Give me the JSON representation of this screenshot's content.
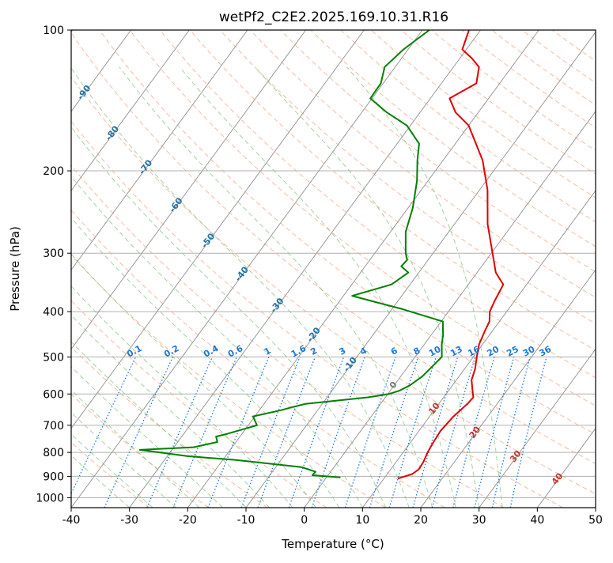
{
  "chart_data": {
    "type": "line",
    "title": "wetPf2_C2E2.2025.169.10.31.R16",
    "xlabel": "Temperature (°C)",
    "ylabel": "Pressure (hPa)",
    "xlim": [
      -40,
      50
    ],
    "ylim": [
      1050,
      100
    ],
    "y_scale": "log",
    "grid": true,
    "x_ticks": [
      -40,
      -30,
      -20,
      -10,
      0,
      10,
      20,
      30,
      40,
      50
    ],
    "y_ticks": [
      100,
      200,
      300,
      400,
      500,
      600,
      700,
      800,
      900,
      1000
    ],
    "colors": {
      "temperature": "#e00000",
      "dewpoint": "#008000",
      "dry_adiabat": "#f4a582",
      "moist_adiabat": "#7fbf7b",
      "mixing_ratio": "#1f78d1",
      "isotherm": "#999999"
    },
    "series": [
      {
        "role": "temperature",
        "points": [
          [
            12.4,
            910
          ],
          [
            14.3,
            890
          ],
          [
            14.8,
            870
          ],
          [
            14.7,
            840
          ],
          [
            14.2,
            800
          ],
          [
            13.9,
            760
          ],
          [
            13.7,
            720
          ],
          [
            14.1,
            670
          ],
          [
            14.9,
            630
          ],
          [
            15.1,
            610
          ],
          [
            14.1,
            590
          ],
          [
            12.6,
            560
          ],
          [
            11.8,
            530
          ],
          [
            10.6,
            500
          ],
          [
            9.4,
            470
          ],
          [
            8.7,
            440
          ],
          [
            8.3,
            420
          ],
          [
            7.1,
            400
          ],
          [
            6.6,
            380
          ],
          [
            6.0,
            350
          ],
          [
            3.2,
            330
          ],
          [
            0.2,
            300
          ],
          [
            -4.3,
            260
          ],
          [
            -8.6,
            220
          ],
          [
            -13.2,
            190
          ],
          [
            -20.0,
            160
          ],
          [
            -23.9,
            150
          ],
          [
            -26.7,
            140
          ],
          [
            -24.0,
            130
          ],
          [
            -25.6,
            120
          ],
          [
            -27.9,
            115
          ],
          [
            -30.7,
            110
          ],
          [
            -32.0,
            100
          ]
        ]
      },
      {
        "role": "dewpoint",
        "points": [
          [
            2.4,
            905
          ],
          [
            -2.7,
            895
          ],
          [
            -2.6,
            880
          ],
          [
            -5.6,
            860
          ],
          [
            -17.9,
            830
          ],
          [
            -26.5,
            815
          ],
          [
            -35.5,
            790
          ],
          [
            -26.6,
            780
          ],
          [
            -23.2,
            760
          ],
          [
            -24.1,
            740
          ],
          [
            -22.5,
            730
          ],
          [
            -18.5,
            700
          ],
          [
            -20.3,
            670
          ],
          [
            -16.3,
            650
          ],
          [
            -14.7,
            640
          ],
          [
            -12.9,
            630
          ],
          [
            -3.0,
            610
          ],
          [
            0.2,
            600
          ],
          [
            1.6,
            590
          ],
          [
            2.7,
            575
          ],
          [
            3.7,
            550
          ],
          [
            4.6,
            500
          ],
          [
            3.0,
            470
          ],
          [
            2.1,
            450
          ],
          [
            0.3,
            420
          ],
          [
            -8.2,
            395
          ],
          [
            -14.4,
            380
          ],
          [
            -18.5,
            370
          ],
          [
            -13.2,
            350
          ],
          [
            -11.8,
            330
          ],
          [
            -13.8,
            320
          ],
          [
            -13.6,
            310
          ],
          [
            -14.7,
            300
          ],
          [
            -17.4,
            270
          ],
          [
            -19.2,
            240
          ],
          [
            -21.9,
            210
          ],
          [
            -24.4,
            190
          ],
          [
            -26.2,
            175
          ],
          [
            -30.6,
            160
          ],
          [
            -35.7,
            150
          ],
          [
            -40.3,
            140
          ],
          [
            -40.4,
            130
          ],
          [
            -41.8,
            120
          ],
          [
            -40.8,
            110
          ],
          [
            -38.8,
            100
          ]
        ]
      }
    ],
    "mixing_ratio_labels": [
      "0.1",
      "0.2",
      "0.4",
      "0.6",
      "1",
      "1.6",
      "2",
      "3",
      "4",
      "6",
      "8",
      "10",
      "13",
      "16",
      "20",
      "25",
      "30",
      "36"
    ],
    "isotherm_labels": [
      "-100",
      "-90",
      "-80",
      "-70",
      "-60",
      "-50",
      "-40",
      "-30",
      "-20",
      "-10",
      "0",
      "10",
      "20",
      "30",
      "40"
    ]
  }
}
